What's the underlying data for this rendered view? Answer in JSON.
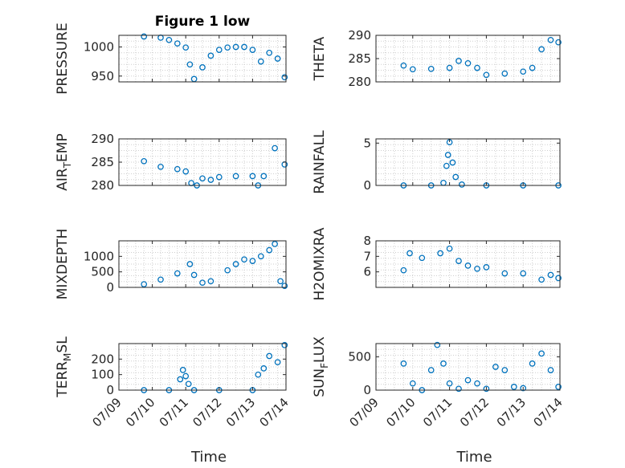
{
  "chart_data": [
    {
      "type": "scatter",
      "title": "Figure 1 low",
      "ylabel": "PRESSURE",
      "ylim": [
        940,
        1020
      ],
      "yticks": [
        950,
        1000
      ],
      "x": [
        "2019-07-09T18:00",
        "2019-07-10T06:00",
        "2019-07-10T12:00",
        "2019-07-10T18:00",
        "2019-07-11T00:00",
        "2019-07-11T03:00",
        "2019-07-11T06:00",
        "2019-07-11T12:00",
        "2019-07-11T18:00",
        "2019-07-12T00:00",
        "2019-07-12T06:00",
        "2019-07-12T12:00",
        "2019-07-12T18:00",
        "2019-07-13T00:00",
        "2019-07-13T06:00",
        "2019-07-13T12:00",
        "2019-07-13T18:00",
        "2019-07-13T23:00"
      ],
      "y": [
        1018,
        1016,
        1012,
        1006,
        999,
        970,
        945,
        965,
        985,
        995,
        999,
        1000,
        1000,
        995,
        975,
        990,
        980,
        948
      ],
      "xlim": [
        "2019-07-09",
        "2019-07-14"
      ],
      "xticks": [
        "07/09",
        "07/10",
        "07/11",
        "07/12",
        "07/13",
        "07/14"
      ],
      "xlabel": "",
      "grid": true
    },
    {
      "type": "scatter",
      "ylabel": "THETA",
      "ylim": [
        280,
        290
      ],
      "yticks": [
        280,
        285,
        290
      ],
      "x": [
        "2019-07-09T18:00",
        "2019-07-10T00:00",
        "2019-07-10T12:00",
        "2019-07-11T00:00",
        "2019-07-11T06:00",
        "2019-07-11T12:00",
        "2019-07-11T18:00",
        "2019-07-12T00:00",
        "2019-07-12T12:00",
        "2019-07-13T00:00",
        "2019-07-13T06:00",
        "2019-07-13T12:00",
        "2019-07-13T18:00",
        "2019-07-13T23:00"
      ],
      "y": [
        283.5,
        282.7,
        282.8,
        283.0,
        284.5,
        284.0,
        283.0,
        281.5,
        281.8,
        282.2,
        283.0,
        287.0,
        289.0,
        288.5
      ],
      "xlim": [
        "2019-07-09",
        "2019-07-14"
      ],
      "xticks": [
        "07/09",
        "07/10",
        "07/11",
        "07/12",
        "07/13",
        "07/14"
      ],
      "xlabel": "",
      "grid": true
    },
    {
      "type": "scatter",
      "ylabel": "AIR_TEMP",
      "ylim": [
        280,
        290
      ],
      "yticks": [
        280,
        285,
        290
      ],
      "x": [
        "2019-07-09T18:00",
        "2019-07-10T06:00",
        "2019-07-10T18:00",
        "2019-07-11T00:00",
        "2019-07-11T04:00",
        "2019-07-11T08:00",
        "2019-07-11T12:00",
        "2019-07-11T18:00",
        "2019-07-12T00:00",
        "2019-07-12T12:00",
        "2019-07-13T00:00",
        "2019-07-13T04:00",
        "2019-07-13T08:00",
        "2019-07-13T16:00",
        "2019-07-13T23:00"
      ],
      "y": [
        285.2,
        284.0,
        283.5,
        283.0,
        280.5,
        280.0,
        281.5,
        281.2,
        281.8,
        282.0,
        282.0,
        280.0,
        282.0,
        288.0,
        284.5
      ],
      "xlim": [
        "2019-07-09",
        "2019-07-14"
      ],
      "xticks": [
        "07/09",
        "07/10",
        "07/11",
        "07/12",
        "07/13",
        "07/14"
      ],
      "xlabel": "",
      "grid": true
    },
    {
      "type": "scatter",
      "ylabel": "RAINFALL",
      "ylim": [
        0,
        5.5
      ],
      "yticks": [
        0,
        5
      ],
      "x": [
        "2019-07-09T18:00",
        "2019-07-10T12:00",
        "2019-07-10T20:00",
        "2019-07-10T22:00",
        "2019-07-10T23:00",
        "2019-07-11T00:00",
        "2019-07-11T02:00",
        "2019-07-11T04:00",
        "2019-07-11T08:00",
        "2019-07-12T00:00",
        "2019-07-13T00:00",
        "2019-07-13T23:00"
      ],
      "y": [
        0,
        0,
        0.3,
        2.3,
        3.6,
        5.1,
        2.7,
        1.0,
        0.1,
        0,
        0,
        0
      ],
      "xlim": [
        "2019-07-09",
        "2019-07-14"
      ],
      "xticks": [
        "07/09",
        "07/10",
        "07/11",
        "07/12",
        "07/13",
        "07/14"
      ],
      "xlabel": "",
      "grid": true
    },
    {
      "type": "scatter",
      "ylabel": "MIXDEPTH",
      "ylim": [
        0,
        1500
      ],
      "yticks": [
        0,
        500,
        1000
      ],
      "x": [
        "2019-07-09T18:00",
        "2019-07-10T06:00",
        "2019-07-10T18:00",
        "2019-07-11T03:00",
        "2019-07-11T06:00",
        "2019-07-11T12:00",
        "2019-07-11T18:00",
        "2019-07-12T06:00",
        "2019-07-12T12:00",
        "2019-07-12T18:00",
        "2019-07-13T00:00",
        "2019-07-13T06:00",
        "2019-07-13T12:00",
        "2019-07-13T16:00",
        "2019-07-13T20:00",
        "2019-07-13T23:00"
      ],
      "y": [
        100,
        250,
        450,
        750,
        400,
        150,
        200,
        550,
        750,
        900,
        850,
        1000,
        1200,
        1400,
        200,
        50
      ],
      "xlim": [
        "2019-07-09",
        "2019-07-14"
      ],
      "xticks": [
        "07/09",
        "07/10",
        "07/11",
        "07/12",
        "07/13",
        "07/14"
      ],
      "xlabel": "",
      "grid": true
    },
    {
      "type": "scatter",
      "ylabel": "H2OMIXRA",
      "ylim": [
        5,
        8
      ],
      "yticks": [
        6,
        7,
        8
      ],
      "x": [
        "2019-07-09T18:00",
        "2019-07-09T22:00",
        "2019-07-10T06:00",
        "2019-07-10T18:00",
        "2019-07-11T00:00",
        "2019-07-11T06:00",
        "2019-07-11T12:00",
        "2019-07-11T18:00",
        "2019-07-12T00:00",
        "2019-07-12T12:00",
        "2019-07-13T00:00",
        "2019-07-13T12:00",
        "2019-07-13T18:00",
        "2019-07-13T23:00"
      ],
      "y": [
        6.1,
        7.2,
        6.9,
        7.2,
        7.5,
        6.7,
        6.4,
        6.2,
        6.3,
        5.9,
        5.9,
        5.5,
        5.8,
        5.6
      ],
      "xlim": [
        "2019-07-09",
        "2019-07-14"
      ],
      "xticks": [
        "07/09",
        "07/10",
        "07/11",
        "07/12",
        "07/13",
        "07/14"
      ],
      "xlabel": "",
      "grid": true
    },
    {
      "type": "scatter",
      "ylabel": "TERR_MSL",
      "ylim": [
        0,
        300
      ],
      "yticks": [
        0,
        100,
        200
      ],
      "x": [
        "2019-07-09T18:00",
        "2019-07-10T12:00",
        "2019-07-10T20:00",
        "2019-07-10T22:00",
        "2019-07-11T00:00",
        "2019-07-11T02:00",
        "2019-07-11T06:00",
        "2019-07-12T00:00",
        "2019-07-13T00:00",
        "2019-07-13T04:00",
        "2019-07-13T08:00",
        "2019-07-13T12:00",
        "2019-07-13T18:00",
        "2019-07-13T23:00"
      ],
      "y": [
        0,
        0,
        70,
        130,
        90,
        40,
        0,
        0,
        0,
        100,
        140,
        220,
        180,
        290
      ],
      "xlim": [
        "2019-07-09",
        "2019-07-14"
      ],
      "xticks": [
        "07/09",
        "07/10",
        "07/11",
        "07/12",
        "07/13",
        "07/14"
      ],
      "xlabel": "Time",
      "grid": true
    },
    {
      "type": "scatter",
      "ylabel": "SUN_FLUX",
      "ylim": [
        0,
        700
      ],
      "yticks": [
        0,
        500
      ],
      "x": [
        "2019-07-09T18:00",
        "2019-07-10T00:00",
        "2019-07-10T06:00",
        "2019-07-10T12:00",
        "2019-07-10T16:00",
        "2019-07-10T20:00",
        "2019-07-11T00:00",
        "2019-07-11T06:00",
        "2019-07-11T12:00",
        "2019-07-11T18:00",
        "2019-07-12T00:00",
        "2019-07-12T06:00",
        "2019-07-12T12:00",
        "2019-07-12T18:00",
        "2019-07-13T00:00",
        "2019-07-13T06:00",
        "2019-07-13T12:00",
        "2019-07-13T18:00",
        "2019-07-13T23:00"
      ],
      "y": [
        400,
        100,
        0,
        300,
        680,
        400,
        100,
        20,
        150,
        100,
        20,
        350,
        300,
        50,
        30,
        400,
        550,
        300,
        50
      ],
      "xlim": [
        "2019-07-09",
        "2019-07-14"
      ],
      "xticks": [
        "07/09",
        "07/10",
        "07/11",
        "07/12",
        "07/13",
        "07/14"
      ],
      "xlabel": "Time",
      "grid": true
    }
  ]
}
